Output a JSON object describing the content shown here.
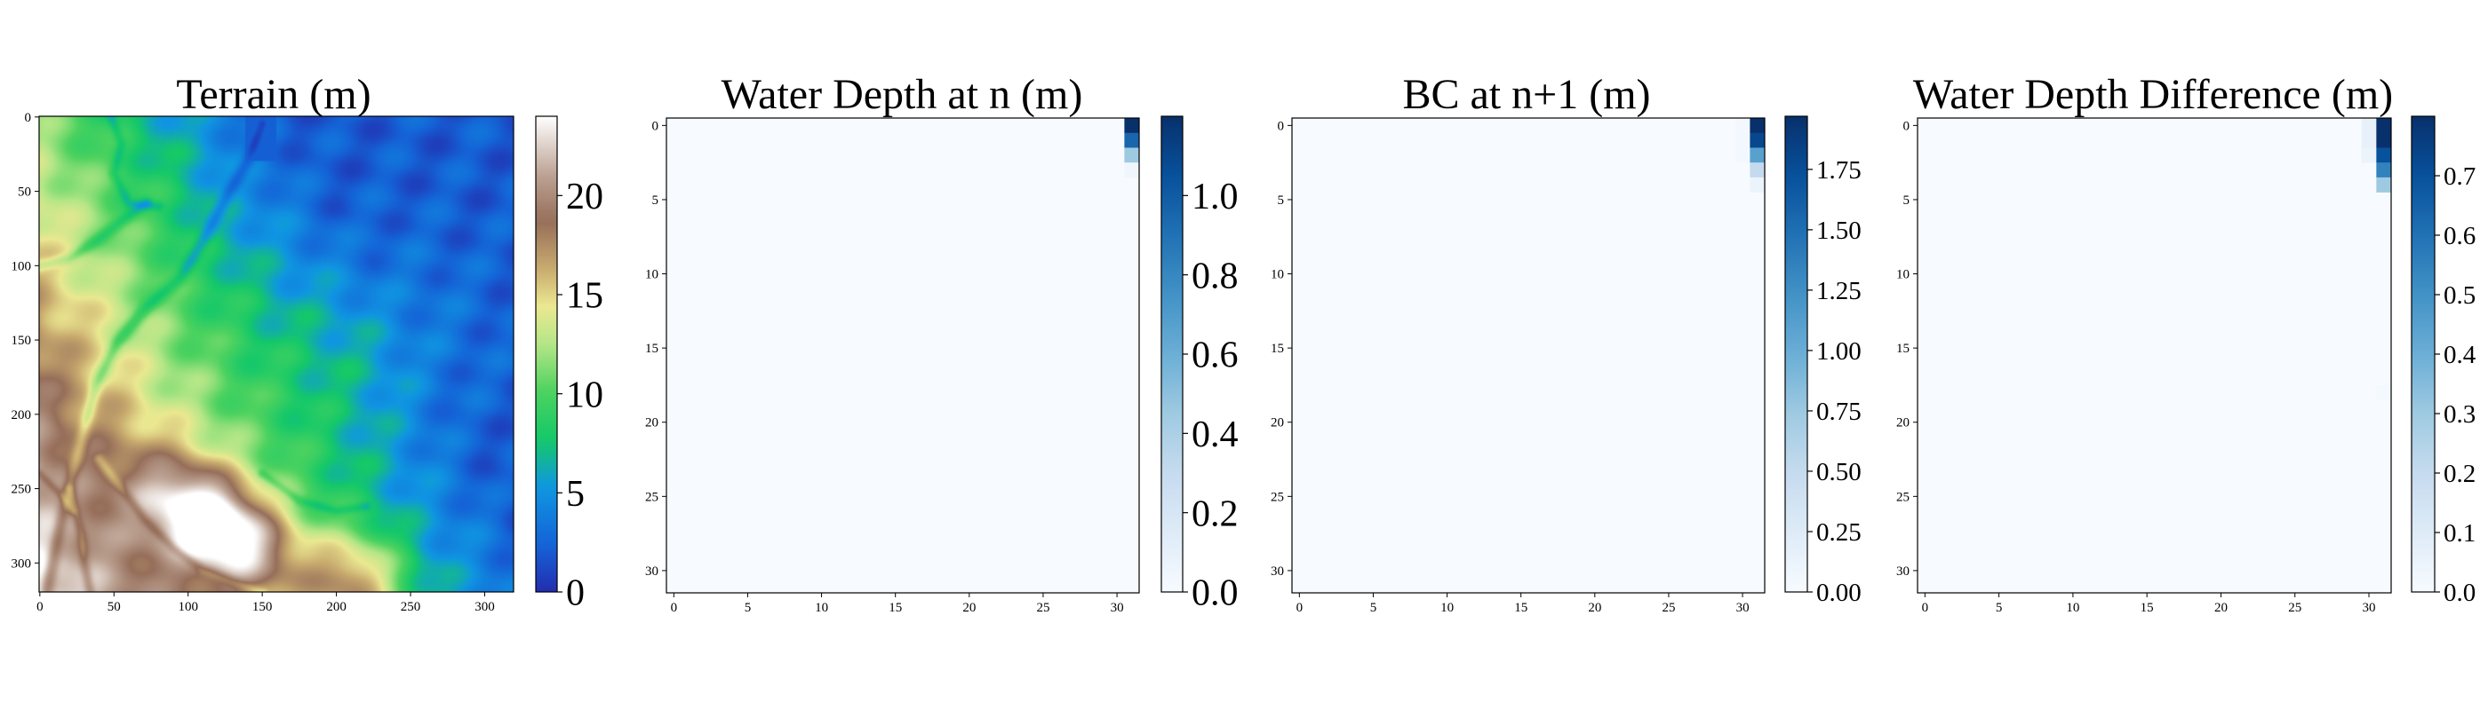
{
  "figure": {
    "type": "heatmap-panels"
  },
  "chart_data": [
    {
      "type": "heatmap",
      "title": "Terrain (m)",
      "colormap": "gist_earth",
      "grid_size": 320,
      "x_ticks": [
        "0",
        "50",
        "100",
        "150",
        "200",
        "250",
        "300"
      ],
      "y_ticks": [
        "0",
        "50",
        "100",
        "150",
        "200",
        "250",
        "300"
      ],
      "colorbar": {
        "range": [
          0,
          24
        ],
        "ticks": [
          "0",
          "5",
          "10",
          "15",
          "20"
        ]
      },
      "features": {
        "min_zone": "top-right, ~0 m",
        "max_zone": "bottom-left ridge around (125, 280), ~24 m",
        "channels": "incised drainage channels from the top-center and left edge flowing down to the bottom-left"
      }
    },
    {
      "type": "heatmap",
      "title": "Water Depth at n (m)",
      "colormap": "Blues",
      "grid_size": 32,
      "x_ticks": [
        "0",
        "5",
        "10",
        "15",
        "20",
        "25",
        "30"
      ],
      "y_ticks": [
        "0",
        "5",
        "10",
        "15",
        "20",
        "25",
        "30"
      ],
      "colorbar": {
        "range": [
          0,
          1.2
        ],
        "ticks": [
          "0.0",
          "0.2",
          "0.4",
          "0.6",
          "0.8",
          "1.0"
        ]
      },
      "nonzero_cells": [
        {
          "row": 0,
          "col": 31,
          "value": 1.2
        },
        {
          "row": 1,
          "col": 31,
          "value": 0.95
        },
        {
          "row": 2,
          "col": 31,
          "value": 0.45
        },
        {
          "row": 3,
          "col": 31,
          "value": 0.05
        }
      ]
    },
    {
      "type": "heatmap",
      "title": "BC at n+1 (m)",
      "colormap": "Blues",
      "grid_size": 32,
      "x_ticks": [
        "0",
        "5",
        "10",
        "15",
        "20",
        "25",
        "30"
      ],
      "y_ticks": [
        "0",
        "5",
        "10",
        "15",
        "20",
        "25",
        "30"
      ],
      "colorbar": {
        "range": [
          0,
          1.97
        ],
        "ticks": [
          "0.00",
          "0.25",
          "0.50",
          "0.75",
          "1.00",
          "1.25",
          "1.50",
          "1.75"
        ]
      },
      "nonzero_cells": [
        {
          "row": 0,
          "col": 30,
          "value": 0.05
        },
        {
          "row": 1,
          "col": 30,
          "value": 0.05
        },
        {
          "row": 2,
          "col": 30,
          "value": 0.04
        },
        {
          "row": 0,
          "col": 31,
          "value": 1.97
        },
        {
          "row": 1,
          "col": 31,
          "value": 1.8
        },
        {
          "row": 2,
          "col": 31,
          "value": 1.1
        },
        {
          "row": 3,
          "col": 31,
          "value": 0.5
        },
        {
          "row": 4,
          "col": 31,
          "value": 0.12
        }
      ]
    },
    {
      "type": "heatmap",
      "title": "Water Depth Difference (m)",
      "colormap": "Blues",
      "grid_size": 32,
      "x_ticks": [
        "0",
        "5",
        "10",
        "15",
        "20",
        "25",
        "30"
      ],
      "y_ticks": [
        "0",
        "5",
        "10",
        "15",
        "20",
        "25",
        "30"
      ],
      "colorbar": {
        "range": [
          0,
          0.8
        ],
        "ticks": [
          "0.0",
          "0.1",
          "0.2",
          "0.3",
          "0.4",
          "0.5",
          "0.6",
          "0.7"
        ]
      },
      "nonzero_cells": [
        {
          "row": 0,
          "col": 30,
          "value": 0.06
        },
        {
          "row": 1,
          "col": 30,
          "value": 0.06
        },
        {
          "row": 2,
          "col": 30,
          "value": 0.05
        },
        {
          "row": 0,
          "col": 31,
          "value": 0.8
        },
        {
          "row": 1,
          "col": 31,
          "value": 0.8
        },
        {
          "row": 2,
          "col": 31,
          "value": 0.7
        },
        {
          "row": 3,
          "col": 31,
          "value": 0.55
        },
        {
          "row": 4,
          "col": 31,
          "value": 0.3
        },
        {
          "row": 18,
          "col": 31,
          "value": 0.015
        }
      ]
    }
  ]
}
